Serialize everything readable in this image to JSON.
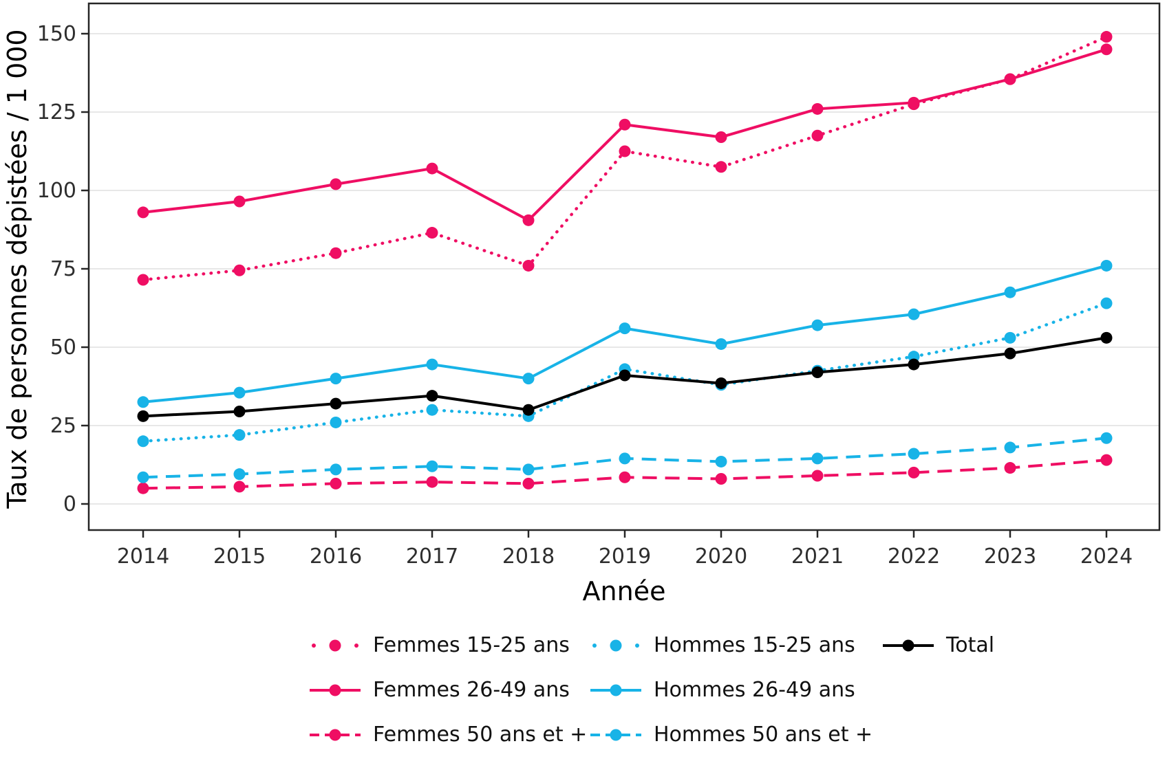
{
  "chart_data": {
    "type": "line",
    "title": "",
    "xlabel": "Année",
    "ylabel": "Taux de personnes dépistées / 1 000",
    "x": [
      2014,
      2015,
      2016,
      2017,
      2018,
      2019,
      2020,
      2021,
      2022,
      2023,
      2024
    ],
    "yticks": [
      0,
      25,
      50,
      75,
      100,
      125,
      150
    ],
    "ylim": [
      0,
      150
    ],
    "grid": "horizontal",
    "legend_position": "bottom",
    "series": [
      {
        "id": "femmes-26-49",
        "name": "Femmes 26-49 ans",
        "color": "#EF0E63",
        "line_style": "solid",
        "values": [
          93,
          96.5,
          102,
          107,
          90.5,
          121,
          117,
          126,
          128,
          135.5,
          145
        ]
      },
      {
        "id": "femmes-15-25",
        "name": "Femmes 15-25 ans",
        "color": "#EF0E63",
        "line_style": "dotted",
        "values": [
          71.5,
          74.5,
          80,
          86.5,
          76,
          112.5,
          107.5,
          117.5,
          127.5,
          135.5,
          149
        ]
      },
      {
        "id": "femmes-50-plus",
        "name": "Femmes 50 ans et +",
        "color": "#EF0E63",
        "line_style": "dashed",
        "values": [
          5,
          5.5,
          6.5,
          7,
          6.5,
          8.5,
          8,
          9,
          10,
          11.5,
          14
        ]
      },
      {
        "id": "hommes-26-49",
        "name": "Hommes 26-49 ans",
        "color": "#18B3E7",
        "line_style": "solid",
        "values": [
          32.5,
          35.5,
          40,
          44.5,
          40,
          56,
          51,
          57,
          60.5,
          67.5,
          76
        ]
      },
      {
        "id": "hommes-15-25",
        "name": "Hommes 15-25 ans",
        "color": "#18B3E7",
        "line_style": "dotted",
        "values": [
          20,
          22,
          26,
          30,
          28,
          43,
          38,
          42.5,
          47,
          53,
          64
        ]
      },
      {
        "id": "hommes-50-plus",
        "name": "Hommes 50 ans et +",
        "color": "#18B3E7",
        "line_style": "dashed",
        "values": [
          8.5,
          9.5,
          11,
          12,
          11,
          14.5,
          13.5,
          14.5,
          16,
          18,
          21
        ]
      },
      {
        "id": "total",
        "name": "Total",
        "color": "#000000",
        "line_style": "solid",
        "values": [
          28,
          29.5,
          32,
          34.5,
          30,
          41,
          38.5,
          42,
          44.5,
          48,
          53
        ]
      }
    ],
    "legend_grid": [
      [
        "Femmes 15-25 ans",
        "Hommes 15-25 ans",
        "Total"
      ],
      [
        "Femmes 26-49 ans",
        "Hommes 26-49 ans",
        ""
      ],
      [
        "Femmes 50 ans et +",
        "Hommes 50 ans et +",
        ""
      ]
    ]
  },
  "colors": {
    "femmes": "#EF0E63",
    "hommes": "#18B3E7",
    "total": "#000000",
    "gridline": "#E7E7E7",
    "spine": "#262626",
    "tick_text": "#2e2e2e"
  }
}
